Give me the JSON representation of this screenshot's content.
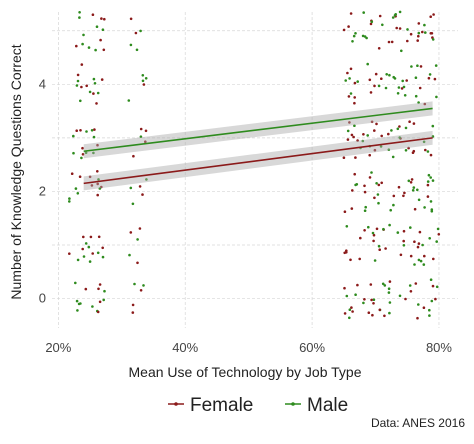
{
  "chart_data": {
    "type": "scatter",
    "xlabel": "Mean Use of Technology by Job Type",
    "ylabel": "Number of Knowledge Questions Correct",
    "xlim": [
      0.19,
      0.83
    ],
    "ylim": [
      -0.55,
      5.35
    ],
    "x_ticks": [
      {
        "value": 0.2,
        "label": "20%"
      },
      {
        "value": 0.4,
        "label": "40%"
      },
      {
        "value": 0.6,
        "label": "60%"
      },
      {
        "value": 0.8,
        "label": "80%"
      }
    ],
    "y_ticks": [
      {
        "value": 0,
        "label": "0"
      },
      {
        "value": 2,
        "label": "2"
      },
      {
        "value": 4,
        "label": "4"
      }
    ],
    "grid": true,
    "jitter_points": "many jittered points at integer y values 0–5, concentrated near x≈0.24, x≈0.32 and x≈0.63–0.80",
    "x_clusters": [
      {
        "center": 0.245,
        "spread": 0.028
      },
      {
        "center": 0.325,
        "spread": 0.014
      },
      {
        "center": 0.725,
        "spread": 0.075
      }
    ],
    "series": [
      {
        "name": "Female",
        "color": "#8b1a1a",
        "trend": {
          "x": [
            0.24,
            0.79
          ],
          "y": [
            2.15,
            3.0
          ]
        }
      },
      {
        "name": "Male",
        "color": "#2e8b1e",
        "trend": {
          "x": [
            0.24,
            0.79
          ],
          "y": [
            2.75,
            3.55
          ]
        }
      }
    ],
    "legend_position": "bottom",
    "caption": "Data: ANES 2016"
  }
}
